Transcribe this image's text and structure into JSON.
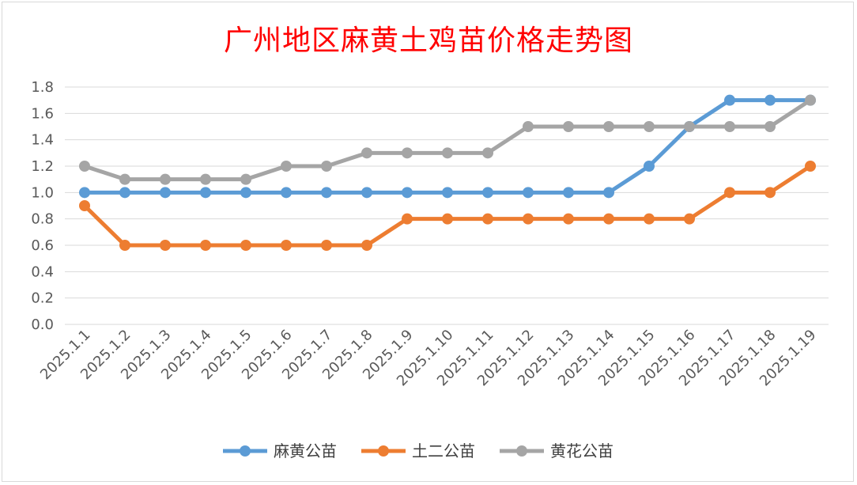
{
  "chart_data": {
    "type": "line",
    "title": "广州地区麻黄土鸡苗价格走势图",
    "xlabel": "",
    "ylabel": "",
    "categories": [
      "2025.1.1",
      "2025.1.2",
      "2025.1.3",
      "2025.1.4",
      "2025.1.5",
      "2025.1.6",
      "2025.1.7",
      "2025.1.8",
      "2025.1.9",
      "2025.1.10",
      "2025.1.11",
      "2025.1.12",
      "2025.1.13",
      "2025.1.14",
      "2025.1.15",
      "2025.1.16",
      "2025.1.17",
      "2025.1.18",
      "2025.1.19"
    ],
    "ylim": [
      0,
      1.8
    ],
    "yticks": [
      "0.0",
      "0.2",
      "0.4",
      "0.6",
      "0.8",
      "1.0",
      "1.2",
      "1.4",
      "1.6",
      "1.8"
    ],
    "grid": true,
    "legend_position": "bottom",
    "series": [
      {
        "name": "麻黄公苗",
        "color": "#5b9bd5",
        "values": [
          1.0,
          1.0,
          1.0,
          1.0,
          1.0,
          1.0,
          1.0,
          1.0,
          1.0,
          1.0,
          1.0,
          1.0,
          1.0,
          1.0,
          1.2,
          1.5,
          1.7,
          1.7,
          1.7
        ]
      },
      {
        "name": "土二公苗",
        "color": "#ed7d31",
        "values": [
          0.9,
          0.6,
          0.6,
          0.6,
          0.6,
          0.6,
          0.6,
          0.6,
          0.8,
          0.8,
          0.8,
          0.8,
          0.8,
          0.8,
          0.8,
          0.8,
          1.0,
          1.0,
          1.2
        ]
      },
      {
        "name": "黄花公苗",
        "color": "#a5a5a5",
        "values": [
          1.2,
          1.1,
          1.1,
          1.1,
          1.1,
          1.2,
          1.2,
          1.3,
          1.3,
          1.3,
          1.3,
          1.5,
          1.5,
          1.5,
          1.5,
          1.5,
          1.5,
          1.5,
          1.7
        ]
      }
    ]
  }
}
